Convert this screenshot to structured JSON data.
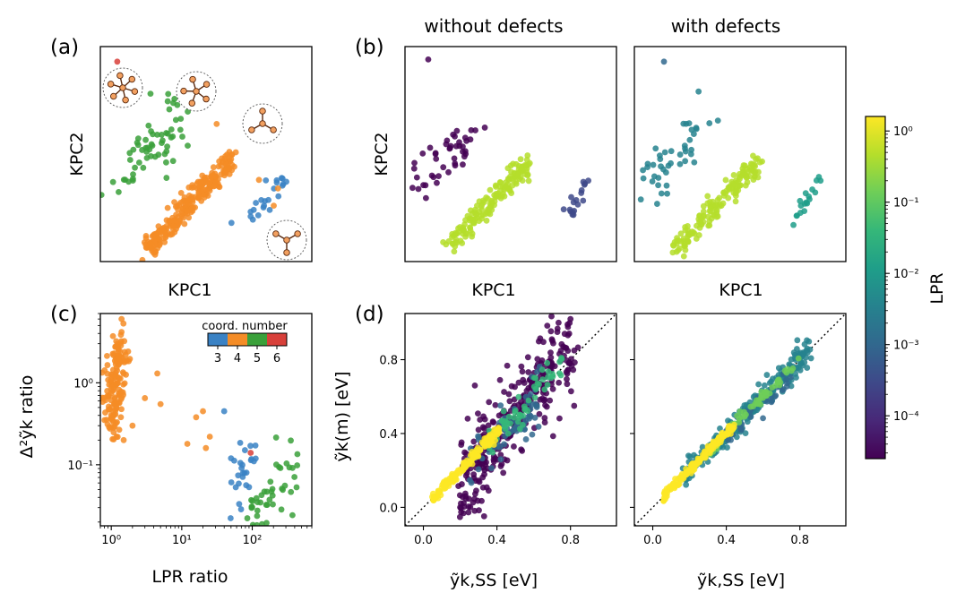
{
  "colors": {
    "coord3": "#3a82c4",
    "coord4": "#f48c26",
    "coord5": "#3aa03a",
    "coord6": "#d8403a",
    "viridis": [
      "#440154",
      "#482878",
      "#3e4989",
      "#31688e",
      "#26828e",
      "#1f9e89",
      "#35b779",
      "#6ece58",
      "#b5de2b",
      "#fde725"
    ]
  },
  "panel_labels": {
    "a": "(a)",
    "b": "(b)",
    "c": "(c)",
    "d": "(d)"
  },
  "column_titles": {
    "left": "without defects",
    "right": "with defects"
  },
  "chart_data": [
    {
      "id": "a",
      "type": "scatter",
      "xlabel": "KPC1",
      "ylabel": "KPC2",
      "xlim": [
        0,
        10
      ],
      "ylim": [
        0,
        10
      ],
      "series": [
        {
          "color_key": "coord4",
          "clusters": [
            {
              "x0": 2.2,
              "y0": 0.6,
              "x1": 6.3,
              "y1": 4.8,
              "w": 0.25,
              "n": 260,
              "jitter": 0.18
            }
          ]
        },
        {
          "color_key": "coord5",
          "clusters": [
            {
              "x0": 1.2,
              "y0": 4.2,
              "x1": 3.8,
              "y1": 6.6,
              "w": 0.8,
              "n": 60,
              "jitter": 0.3
            }
          ]
        },
        {
          "color_key": "coord3",
          "clusters": [
            {
              "x0": 7.0,
              "y0": 1.9,
              "x1": 8.6,
              "y1": 3.9,
              "w": 0.15,
              "n": 22,
              "jitter": 0.2
            }
          ]
        },
        {
          "color_key": "coord6",
          "points": [
            [
              0.8,
              9.3
            ]
          ]
        }
      ],
      "extra_points": {
        "coord4": [
          [
            8.4,
            3.4
          ],
          [
            7.5,
            3.8
          ],
          [
            5.5,
            6.4
          ],
          [
            8.2,
            2.6
          ]
        ],
        "coord5": [
          [
            0.05,
            3.1
          ],
          [
            0.6,
            3.7
          ]
        ],
        "coord3": [
          [
            6.2,
            1.8
          ]
        ]
      }
    },
    {
      "id": "b-left",
      "type": "scatter",
      "xlabel": "KPC1",
      "ylabel": "KPC2",
      "xlim": [
        0,
        10
      ],
      "ylim": [
        0,
        10
      ],
      "series": [
        {
          "color_idx": 8,
          "clusters": [
            {
              "x0": 2.0,
              "y0": 0.6,
              "x1": 5.8,
              "y1": 4.6,
              "w": 0.25,
              "n": 160,
              "jitter": 0.18
            }
          ]
        },
        {
          "color_idx": 0,
          "clusters": [
            {
              "x0": 0.5,
              "y0": 3.6,
              "x1": 3.4,
              "y1": 6.4,
              "w": 0.6,
              "n": 45,
              "jitter": 0.3
            }
          ]
        },
        {
          "color_idx": 2,
          "clusters": [
            {
              "x0": 7.7,
              "y0": 2.1,
              "x1": 8.7,
              "y1": 3.8,
              "w": 0.15,
              "n": 18,
              "jitter": 0.15
            }
          ]
        },
        {
          "color_idx": 0,
          "points": [
            [
              1.1,
              9.4
            ]
          ]
        }
      ]
    },
    {
      "id": "b-right",
      "type": "scatter",
      "xlabel": "KPC1",
      "xlim": [
        0,
        10
      ],
      "ylim": [
        0,
        10
      ],
      "series": [
        {
          "color_idx": 8,
          "clusters": [
            {
              "x0": 2.0,
              "y0": 0.6,
              "x1": 5.8,
              "y1": 4.6,
              "w": 0.25,
              "n": 160,
              "jitter": 0.18
            }
          ]
        },
        {
          "color_idx": 4,
          "clusters": [
            {
              "x0": 0.5,
              "y0": 3.6,
              "x1": 3.4,
              "y1": 6.4,
              "w": 0.6,
              "n": 45,
              "jitter": 0.3
            }
          ]
        },
        {
          "color_idx": 5,
          "clusters": [
            {
              "x0": 7.7,
              "y0": 2.1,
              "x1": 8.7,
              "y1": 3.8,
              "w": 0.15,
              "n": 18,
              "jitter": 0.15
            }
          ]
        },
        {
          "color_idx": 3,
          "points": [
            [
              1.4,
              9.3
            ]
          ]
        }
      ]
    },
    {
      "id": "c",
      "type": "scatter",
      "xlabel": "LPR ratio",
      "ylabel": "Δ²ỹk ratio",
      "xscale": "log",
      "yscale": "log",
      "xlim": [
        0.7,
        700
      ],
      "ylim": [
        0.018,
        7
      ],
      "xticks": [
        1,
        10,
        100
      ],
      "xtick_labels": [
        "10⁰",
        "10¹",
        "10²"
      ],
      "yticks": [
        0.1,
        1
      ],
      "ytick_labels": [
        "10⁻¹",
        "10⁰"
      ],
      "legend_title": "coord. number",
      "legend_labels": [
        "3",
        "4",
        "5",
        "6"
      ],
      "legend_placement": "top-right",
      "series": [
        {
          "color_key": "coord4",
          "clusters": [
            {
              "x0": 1.0,
              "y0": 0.25,
              "x1": 1.25,
              "y1": 3.0,
              "w": 0.2,
              "n": 150,
              "jitter": 0.3
            }
          ]
        },
        {
          "color_key": "coord5",
          "clusters": [
            {
              "x0": 80,
              "y0": 0.02,
              "x1": 450,
              "y1": 0.12,
              "w": 0.3,
              "n": 50,
              "jitter": 0.4
            }
          ]
        },
        {
          "color_key": "coord3",
          "clusters": [
            {
              "x0": 60,
              "y0": 0.035,
              "x1": 90,
              "y1": 0.13,
              "w": 0.2,
              "n": 25,
              "jitter": 0.3
            }
          ]
        },
        {
          "color_key": "coord6",
          "points": [
            [
              95,
              0.14
            ]
          ]
        }
      ],
      "extra_points": {
        "coord4": [
          [
            1.4,
            6.0
          ],
          [
            3.0,
            0.65
          ],
          [
            4.5,
            1.3
          ],
          [
            2.0,
            0.3
          ],
          [
            16,
            0.38
          ],
          [
            20,
            0.45
          ],
          [
            25,
            0.22
          ],
          [
            12,
            0.18
          ],
          [
            1.5,
            0.2
          ],
          [
            5,
            0.55
          ],
          [
            22,
            0.16
          ]
        ],
        "coord3": [
          [
            40,
            0.45
          ],
          [
            50,
            0.12
          ]
        ]
      }
    },
    {
      "id": "d-left",
      "type": "scatter",
      "xlabel": "ỹk,SS [eV]",
      "ylabel": "ỹk(m) [eV]",
      "xlim": [
        -0.1,
        1.05
      ],
      "ylim": [
        -0.1,
        1.05
      ],
      "xticks": [
        0.0,
        0.4,
        0.8
      ],
      "xtick_labels": [
        "0.0",
        "0.4",
        "0.8"
      ],
      "yticks": [
        0.0,
        0.4,
        0.8
      ],
      "ytick_labels": [
        "0.0",
        "0.4",
        "0.8"
      ],
      "diagonal": true,
      "series": [
        {
          "color_idx": 0,
          "clusters": [
            {
              "x0": 0.2,
              "y0": 0.1,
              "x1": 0.8,
              "y1": 0.9,
              "w": 0.12,
              "n": 320,
              "jitter": 0.02
            }
          ]
        },
        {
          "color_idx": 3,
          "clusters": [
            {
              "x0": 0.25,
              "y0": 0.2,
              "x1": 0.65,
              "y1": 0.6,
              "w": 0.07,
              "n": 70,
              "jitter": 0.01
            }
          ]
        },
        {
          "color_idx": 6,
          "clusters": [
            {
              "x0": 0.35,
              "y0": 0.35,
              "x1": 0.75,
              "y1": 0.78,
              "w": 0.04,
              "n": 60,
              "jitter": 0.01
            }
          ]
        },
        {
          "color_idx": 9,
          "clusters": [
            {
              "x0": 0.05,
              "y0": 0.05,
              "x1": 0.42,
              "y1": 0.42,
              "w": 0.015,
              "n": 160,
              "jitter": 0.005
            }
          ]
        }
      ],
      "extra_points": {
        "c0": [
          [
            0.28,
            0.66
          ],
          [
            0.2,
            0.0
          ],
          [
            0.23,
            0.06
          ],
          [
            0.8,
            1.02
          ],
          [
            0.3,
            0.42
          ],
          [
            0.82,
            0.55
          ]
        ]
      }
    },
    {
      "id": "d-right",
      "type": "scatter",
      "xlabel": "ỹk,SS [eV]",
      "xlim": [
        -0.1,
        1.05
      ],
      "ylim": [
        -0.1,
        1.05
      ],
      "xticks": [
        0.0,
        0.4,
        0.8
      ],
      "xtick_labels": [
        "0.0",
        "0.4",
        "0.8"
      ],
      "diagonal": true,
      "series": [
        {
          "color_idx": 4,
          "clusters": [
            {
              "x0": 0.15,
              "y0": 0.15,
              "x1": 0.85,
              "y1": 0.85,
              "w": 0.035,
              "n": 240,
              "jitter": 0.01
            }
          ]
        },
        {
          "color_idx": 3,
          "clusters": [
            {
              "x0": 0.4,
              "y0": 0.37,
              "x1": 0.75,
              "y1": 0.72,
              "w": 0.03,
              "n": 40,
              "jitter": 0.01
            }
          ]
        },
        {
          "color_idx": 7,
          "clusters": [
            {
              "x0": 0.3,
              "y0": 0.3,
              "x1": 0.8,
              "y1": 0.8,
              "w": 0.015,
              "n": 60,
              "jitter": 0.005
            }
          ]
        },
        {
          "color_idx": 9,
          "clusters": [
            {
              "x0": 0.05,
              "y0": 0.05,
              "x1": 0.45,
              "y1": 0.45,
              "w": 0.012,
              "n": 150,
              "jitter": 0.004
            }
          ]
        }
      ]
    },
    {
      "id": "colorbar",
      "type": "colorbar",
      "label": "LPR",
      "scale": "log",
      "range": [
        2.5e-05,
        1.6
      ],
      "ticks": [
        1,
        0.1,
        0.01,
        0.001,
        0.0001
      ],
      "tick_labels": [
        "10⁰",
        "10⁻¹",
        "10⁻²",
        "10⁻³",
        "10⁻⁴"
      ]
    }
  ]
}
